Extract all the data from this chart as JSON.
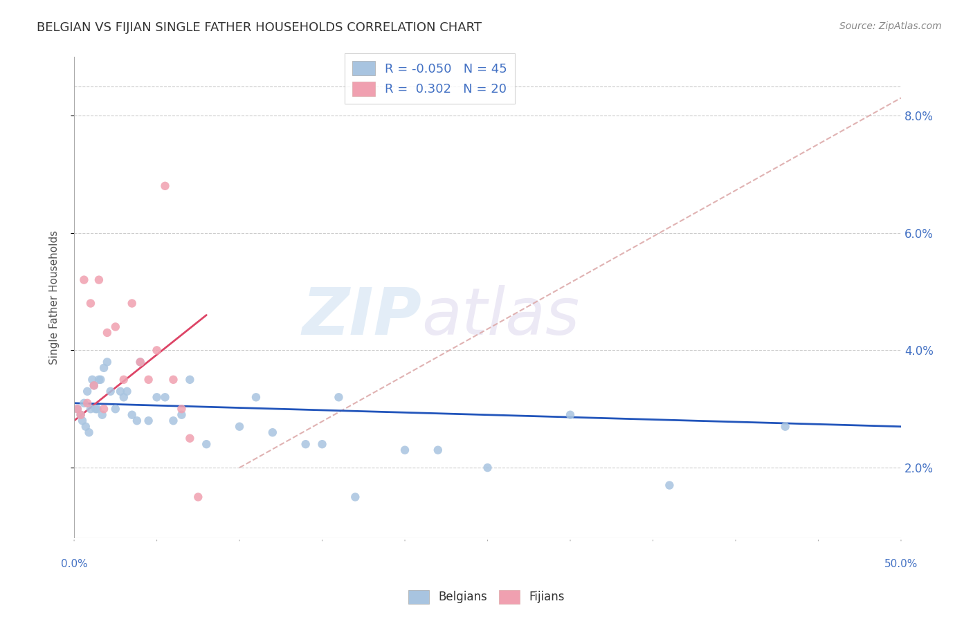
{
  "title": "BELGIAN VS FIJIAN SINGLE FATHER HOUSEHOLDS CORRELATION CHART",
  "source": "Source: ZipAtlas.com",
  "ylabel": "Single Father Households",
  "xlim": [
    0.0,
    50.0
  ],
  "ylim": [
    0.8,
    9.0
  ],
  "ytick_labels": [
    "2.0%",
    "4.0%",
    "6.0%",
    "8.0%"
  ],
  "ytick_values": [
    2.0,
    4.0,
    6.0,
    8.0
  ],
  "belgian_color": "#a8c4e0",
  "fijian_color": "#f0a0b0",
  "belgian_line_color": "#2255bb",
  "fijian_line_color": "#dd4466",
  "dashed_line_color": "#ddaaaa",
  "legend_belgian_label": "R = -0.050   N = 45",
  "legend_fijian_label": "R =  0.302   N = 20",
  "belgians_x": [
    0.2,
    0.4,
    0.5,
    0.6,
    0.7,
    0.8,
    0.9,
    1.0,
    1.1,
    1.2,
    1.3,
    1.4,
    1.5,
    1.6,
    1.7,
    1.8,
    2.0,
    2.2,
    2.5,
    2.8,
    3.0,
    3.2,
    3.5,
    3.8,
    4.0,
    4.5,
    5.0,
    5.5,
    6.0,
    6.5,
    7.0,
    8.0,
    10.0,
    11.0,
    12.0,
    14.0,
    15.0,
    16.0,
    17.0,
    20.0,
    22.0,
    25.0,
    30.0,
    36.0,
    43.0
  ],
  "belgians_y": [
    3.0,
    2.9,
    2.8,
    3.1,
    2.7,
    3.3,
    2.6,
    3.0,
    3.5,
    3.4,
    3.0,
    3.0,
    3.5,
    3.5,
    2.9,
    3.7,
    3.8,
    3.3,
    3.0,
    3.3,
    3.2,
    3.3,
    2.9,
    2.8,
    3.8,
    2.8,
    3.2,
    3.2,
    2.8,
    2.9,
    3.5,
    2.4,
    2.7,
    3.2,
    2.6,
    2.4,
    2.4,
    3.2,
    1.5,
    2.3,
    2.3,
    2.0,
    2.9,
    1.7,
    2.7
  ],
  "fijians_x": [
    0.2,
    0.4,
    0.6,
    0.8,
    1.0,
    1.2,
    1.5,
    1.8,
    2.0,
    2.5,
    3.0,
    3.5,
    4.0,
    4.5,
    5.0,
    5.5,
    6.0,
    6.5,
    7.0,
    7.5
  ],
  "fijians_y": [
    3.0,
    2.9,
    5.2,
    3.1,
    4.8,
    3.4,
    5.2,
    3.0,
    4.3,
    4.4,
    3.5,
    4.8,
    3.8,
    3.5,
    4.0,
    6.8,
    3.5,
    3.0,
    2.5,
    1.5
  ],
  "watermark_zip": "ZIP",
  "watermark_atlas": "atlas",
  "background_color": "#ffffff",
  "grid_color": "#cccccc",
  "belgian_trend_x0": 0.0,
  "belgian_trend_y0": 3.1,
  "belgian_trend_x1": 50.0,
  "belgian_trend_y1": 2.7,
  "fijian_trend_x0": 0.0,
  "fijian_trend_y0": 2.8,
  "fijian_trend_x1": 8.0,
  "fijian_trend_y1": 4.6,
  "dashed_trend_x0": 10.0,
  "dashed_trend_y0": 2.0,
  "dashed_trend_x1": 50.0,
  "dashed_trend_y1": 8.3
}
